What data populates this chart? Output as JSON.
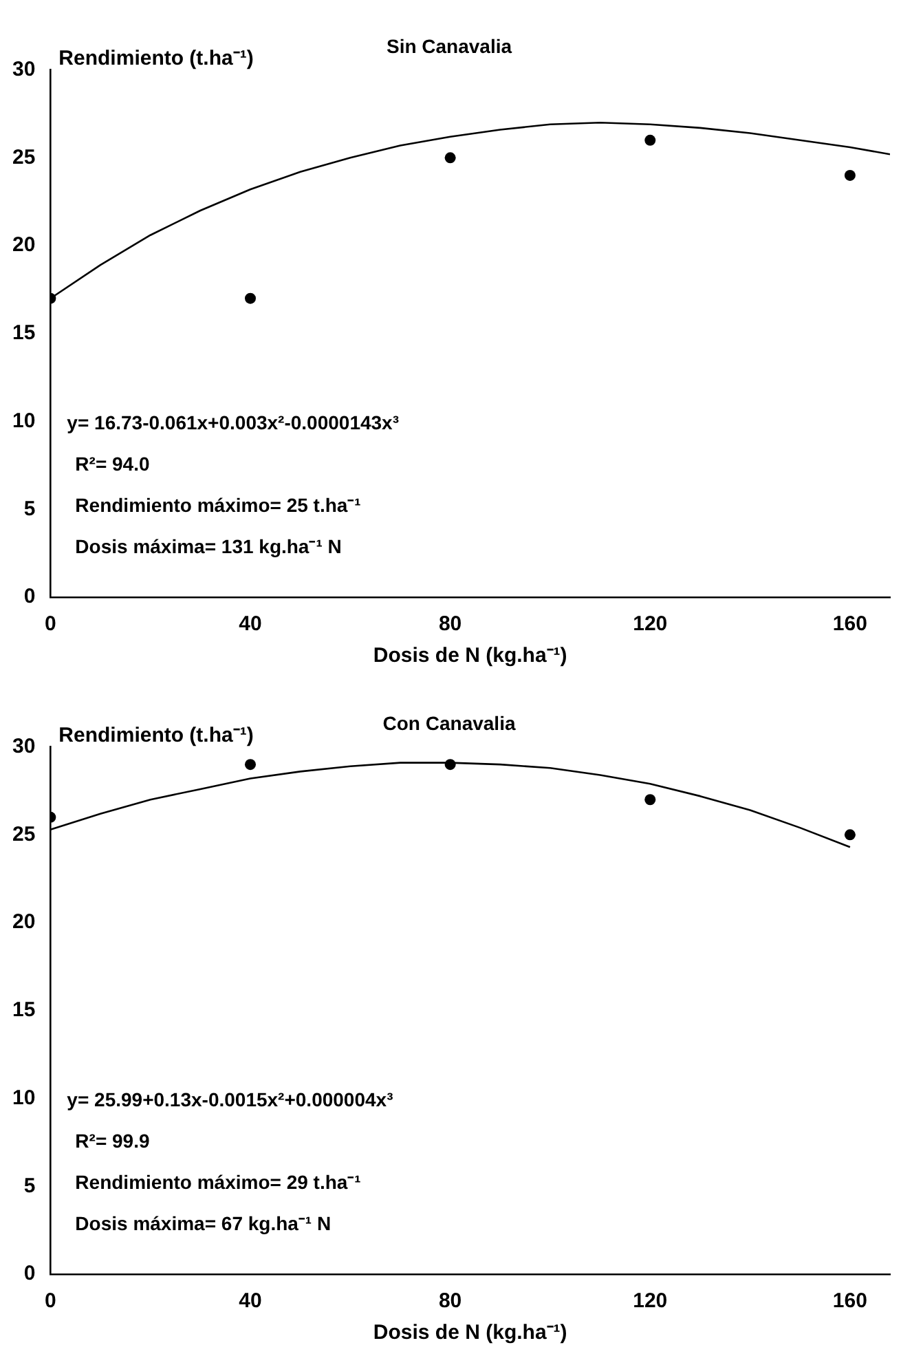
{
  "chart_data": [
    {
      "type": "scatter",
      "title": "Sin Canavalia",
      "xlabel": "Dosis de N (kg.ha⁻¹)",
      "ylabel": "Rendimiento (t.ha⁻¹)",
      "xlim": [
        0,
        168
      ],
      "xticks": [
        0,
        40,
        80,
        120,
        160
      ],
      "ylim": [
        0,
        30
      ],
      "yticks": [
        0,
        5,
        10,
        15,
        20,
        25,
        30
      ],
      "grid": false,
      "legend": false,
      "marker": "circle",
      "series": [
        {
          "type": "scatter",
          "color": "#000000",
          "x": [
            0,
            40,
            80,
            120,
            160
          ],
          "values": [
            17,
            17,
            25,
            26,
            24
          ]
        },
        {
          "type": "line",
          "color": "#000000",
          "marker": "none",
          "x": [
            0,
            10,
            20,
            30,
            40,
            50,
            60,
            70,
            80,
            90,
            100,
            110,
            120,
            130,
            140,
            150,
            160,
            168
          ],
          "values": [
            17,
            18.9,
            20.6,
            22,
            23.2,
            24.2,
            25,
            25.7,
            26.2,
            26.6,
            26.9,
            27,
            26.9,
            26.7,
            26.4,
            26,
            25.6,
            25.2
          ]
        }
      ],
      "annotations": [
        "y= 16.73-0.061x+0.003x²-0.0000143x³",
        "R²= 94.0",
        "Rendimiento máximo= 25 t.ha⁻¹",
        "Dosis máxima= 131 kg.ha⁻¹ N"
      ]
    },
    {
      "type": "scatter",
      "title": "Con Canavalia",
      "xlabel": "Dosis de N (kg.ha⁻¹)",
      "ylabel": "Rendimiento (t.ha⁻¹)",
      "xlim": [
        0,
        168
      ],
      "xticks": [
        0,
        40,
        80,
        120,
        160
      ],
      "ylim": [
        0,
        30
      ],
      "yticks": [
        0,
        5,
        10,
        15,
        20,
        25,
        30
      ],
      "grid": false,
      "legend": false,
      "marker": "circle",
      "series": [
        {
          "type": "scatter",
          "color": "#000000",
          "x": [
            0,
            40,
            80,
            120,
            160
          ],
          "values": [
            26,
            29,
            29,
            27,
            25
          ]
        },
        {
          "type": "line",
          "color": "#000000",
          "marker": "none",
          "x": [
            0,
            10,
            20,
            30,
            40,
            50,
            60,
            70,
            80,
            90,
            100,
            110,
            120,
            130,
            140,
            150,
            160
          ],
          "values": [
            25.3,
            26.2,
            27,
            27.6,
            28.2,
            28.6,
            28.9,
            29.1,
            29.1,
            29,
            28.8,
            28.4,
            27.9,
            27.2,
            26.4,
            25.4,
            24.3
          ]
        }
      ],
      "annotations": [
        "y= 25.99+0.13x-0.0015x²+0.000004x³",
        "R²= 99.9",
        "Rendimiento máximo= 29 t.ha⁻¹",
        "Dosis máxima= 67 kg.ha⁻¹ N"
      ]
    }
  ]
}
